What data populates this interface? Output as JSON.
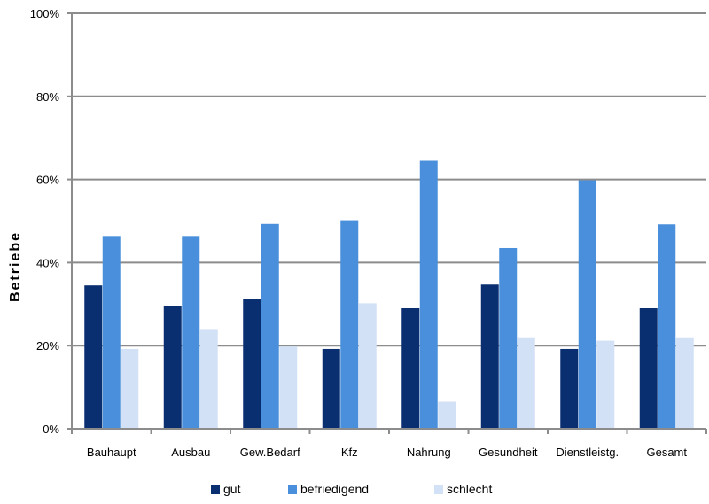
{
  "chart_data": {
    "type": "bar",
    "title": "",
    "xlabel": "",
    "ylabel": "Betriebe",
    "ylim": [
      0,
      100
    ],
    "yticks": [
      "0%",
      "20%",
      "40%",
      "60%",
      "80%",
      "100%"
    ],
    "categories": [
      "Bauhaupt",
      "Ausbau",
      "Gew.Bedarf",
      "Kfz",
      "Nahrung",
      "Gesundheit",
      "Dienstleistg.",
      "Gesamt"
    ],
    "series": [
      {
        "name": "gut",
        "color": "#0a2f70",
        "values": [
          34.5,
          29.5,
          31.3,
          19.2,
          29.0,
          34.7,
          19.2,
          29.0
        ]
      },
      {
        "name": "befriedigend",
        "color": "#4a8fdb",
        "values": [
          46.2,
          46.2,
          49.3,
          50.2,
          64.5,
          43.5,
          59.8,
          49.2
        ]
      },
      {
        "name": "schlecht",
        "color": "#d2e1f5",
        "values": [
          19.2,
          24.0,
          19.8,
          30.2,
          6.5,
          21.8,
          21.2,
          21.8
        ]
      }
    ],
    "grid": true,
    "legend": "bottom"
  }
}
